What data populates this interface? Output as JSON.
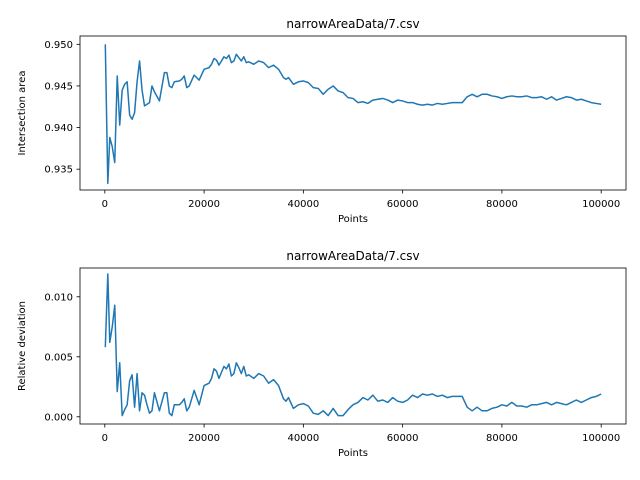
{
  "chart_data": [
    {
      "type": "line",
      "title": "narrowAreaData/7.csv",
      "xlabel": "Points",
      "ylabel": "Intersection area",
      "xlim": [
        -5000,
        105000
      ],
      "ylim": [
        0.9325,
        0.951
      ],
      "xticks": [
        0,
        20000,
        40000,
        60000,
        80000,
        100000
      ],
      "xtick_labels": [
        "0",
        "20000",
        "40000",
        "60000",
        "80000",
        "100000"
      ],
      "yticks": [
        0.935,
        0.94,
        0.945,
        0.95
      ],
      "ytick_labels": [
        "0.935",
        "0.940",
        "0.945",
        "0.950"
      ],
      "grid": false,
      "color": "#1f77b4",
      "x": [
        100,
        600,
        1000,
        1500,
        2000,
        2500,
        3000,
        3500,
        4000,
        4500,
        5000,
        5500,
        6000,
        6500,
        7000,
        7500,
        8000,
        8500,
        9000,
        9500,
        10000,
        11000,
        12000,
        12500,
        13000,
        13500,
        14000,
        15000,
        15500,
        16000,
        16500,
        17000,
        18000,
        19000,
        20000,
        21000,
        21500,
        22000,
        22500,
        23000,
        24000,
        24500,
        25000,
        25500,
        26000,
        26500,
        27000,
        27500,
        28000,
        28500,
        29000,
        30000,
        31000,
        32000,
        33000,
        34000,
        35000,
        36000,
        36500,
        37000,
        38000,
        39000,
        40000,
        41000,
        42000,
        43000,
        44000,
        45000,
        46000,
        47000,
        48000,
        49000,
        50000,
        51000,
        52000,
        53000,
        54000,
        55000,
        56000,
        57000,
        58000,
        59000,
        60000,
        61000,
        62000,
        63000,
        64000,
        65000,
        66000,
        67000,
        68000,
        69000,
        70000,
        72000,
        73000,
        74000,
        75000,
        76000,
        77000,
        78000,
        79000,
        80000,
        81000,
        82000,
        83000,
        84000,
        85000,
        86000,
        87000,
        88000,
        89000,
        90000,
        91000,
        92000,
        93000,
        94000,
        95000,
        96000,
        97000,
        98000,
        99000,
        100000
      ],
      "y": [
        0.95,
        0.9333,
        0.9388,
        0.9377,
        0.9358,
        0.9462,
        0.9403,
        0.9445,
        0.9452,
        0.9455,
        0.9415,
        0.941,
        0.9418,
        0.9455,
        0.948,
        0.9445,
        0.9426,
        0.9428,
        0.943,
        0.945,
        0.9443,
        0.9432,
        0.9466,
        0.9466,
        0.945,
        0.9448,
        0.9455,
        0.9456,
        0.9458,
        0.9462,
        0.9448,
        0.945,
        0.9463,
        0.9457,
        0.947,
        0.9472,
        0.9476,
        0.9483,
        0.9481,
        0.9475,
        0.9485,
        0.9483,
        0.9487,
        0.9478,
        0.948,
        0.9488,
        0.9484,
        0.948,
        0.9485,
        0.9478,
        0.9479,
        0.9476,
        0.948,
        0.9478,
        0.9472,
        0.9475,
        0.947,
        0.946,
        0.9458,
        0.946,
        0.9452,
        0.9455,
        0.9456,
        0.9454,
        0.9448,
        0.9447,
        0.944,
        0.9446,
        0.945,
        0.9444,
        0.9442,
        0.9436,
        0.9435,
        0.943,
        0.9431,
        0.9429,
        0.9433,
        0.9434,
        0.9435,
        0.9433,
        0.943,
        0.9433,
        0.9432,
        0.943,
        0.943,
        0.9428,
        0.9427,
        0.9428,
        0.9427,
        0.9429,
        0.9428,
        0.9429,
        0.943,
        0.943,
        0.9437,
        0.944,
        0.9437,
        0.944,
        0.944,
        0.9438,
        0.9437,
        0.9435,
        0.9437,
        0.9438,
        0.9437,
        0.9437,
        0.9438,
        0.9436,
        0.9436,
        0.9437,
        0.9434,
        0.9437,
        0.9433,
        0.9435,
        0.9437,
        0.9436,
        0.9433,
        0.9434,
        0.9432,
        0.943,
        0.9429,
        0.9428
      ]
    },
    {
      "type": "line",
      "title": "narrowAreaData/7.csv",
      "xlabel": "Points",
      "ylabel": "Relative deviation",
      "xlim": [
        -5000,
        105000
      ],
      "ylim": [
        -0.0006,
        0.0124
      ],
      "xticks": [
        0,
        20000,
        40000,
        60000,
        80000,
        100000
      ],
      "xtick_labels": [
        "0",
        "20000",
        "40000",
        "60000",
        "80000",
        "100000"
      ],
      "yticks": [
        0.0,
        0.005,
        0.01
      ],
      "ytick_labels": [
        "0.000",
        "0.005",
        "0.010"
      ],
      "grid": false,
      "color": "#1f77b4",
      "x": [
        100,
        600,
        1000,
        1500,
        2000,
        2500,
        3000,
        3500,
        4000,
        4500,
        5000,
        5500,
        6000,
        6500,
        7000,
        7500,
        8000,
        8500,
        9000,
        9500,
        10000,
        11000,
        12000,
        12500,
        13000,
        13500,
        14000,
        15000,
        15500,
        16000,
        16500,
        17000,
        18000,
        19000,
        20000,
        21000,
        21500,
        22000,
        22500,
        23000,
        24000,
        24500,
        25000,
        25500,
        26000,
        26500,
        27000,
        27500,
        28000,
        28500,
        29000,
        30000,
        31000,
        32000,
        33000,
        34000,
        35000,
        36000,
        36500,
        37000,
        38000,
        39000,
        40000,
        41000,
        42000,
        43000,
        44000,
        45000,
        46000,
        47000,
        48000,
        49000,
        50000,
        51000,
        52000,
        53000,
        54000,
        55000,
        56000,
        57000,
        58000,
        59000,
        60000,
        61000,
        62000,
        63000,
        64000,
        65000,
        66000,
        67000,
        68000,
        69000,
        70000,
        72000,
        73000,
        74000,
        75000,
        76000,
        77000,
        78000,
        79000,
        80000,
        81000,
        82000,
        83000,
        84000,
        85000,
        86000,
        87000,
        88000,
        89000,
        90000,
        91000,
        92000,
        93000,
        94000,
        95000,
        96000,
        97000,
        98000,
        99000,
        100000
      ],
      "y": [
        0.0058,
        0.0119,
        0.0062,
        0.0075,
        0.0093,
        0.0021,
        0.0045,
        0.0001,
        0.0006,
        0.001,
        0.003,
        0.0035,
        0.0008,
        0.0036,
        0.0005,
        0.002,
        0.0018,
        0.001,
        0.0003,
        0.0005,
        0.002,
        0.0005,
        0.002,
        0.002,
        0.0003,
        0.0001,
        0.001,
        0.001,
        0.0012,
        0.0015,
        0.0005,
        0.0008,
        0.0022,
        0.001,
        0.0026,
        0.0028,
        0.0032,
        0.004,
        0.0038,
        0.0032,
        0.0042,
        0.004,
        0.0044,
        0.0034,
        0.0036,
        0.0045,
        0.0041,
        0.0036,
        0.0042,
        0.0034,
        0.0035,
        0.0032,
        0.0036,
        0.0034,
        0.0028,
        0.0031,
        0.0026,
        0.0015,
        0.0013,
        0.0016,
        0.0007,
        0.001,
        0.0011,
        0.0009,
        0.0003,
        0.0002,
        0.0005,
        0.0001,
        0.0007,
        0.0001,
        0.0001,
        0.0006,
        0.001,
        0.0012,
        0.0016,
        0.0014,
        0.0018,
        0.0013,
        0.0014,
        0.0012,
        0.0016,
        0.0013,
        0.0012,
        0.0014,
        0.0018,
        0.0016,
        0.0019,
        0.0018,
        0.0019,
        0.0017,
        0.0018,
        0.0016,
        0.0017,
        0.0017,
        0.0008,
        0.0005,
        0.0008,
        0.0005,
        0.0005,
        0.0007,
        0.0008,
        0.001,
        0.0009,
        0.0012,
        0.0009,
        0.0009,
        0.0008,
        0.001,
        0.001,
        0.0011,
        0.0012,
        0.001,
        0.0012,
        0.0011,
        0.001,
        0.0012,
        0.0014,
        0.0012,
        0.0014,
        0.0016,
        0.0017,
        0.0019
      ]
    }
  ]
}
